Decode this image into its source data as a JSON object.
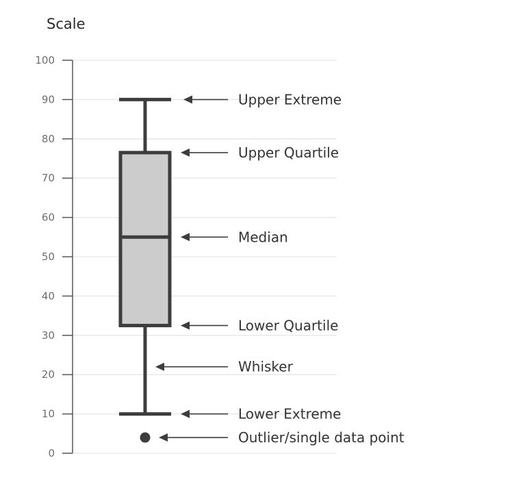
{
  "chart_data": {
    "type": "box",
    "ylabel": "Scale",
    "ylim": [
      0,
      100
    ],
    "yticks": [
      0,
      10,
      20,
      30,
      40,
      50,
      60,
      70,
      80,
      90,
      100
    ],
    "grid": true,
    "box": {
      "upper_extreme": 90,
      "upper_quartile": 76.5,
      "median": 55,
      "lower_quartile": 32.5,
      "lower_extreme": 10,
      "outlier": 4
    },
    "annotations": [
      {
        "key": "upper_extreme",
        "label": "Upper Extreme",
        "value": 90
      },
      {
        "key": "upper_quartile",
        "label": "Upper Quartile",
        "value": 76.5
      },
      {
        "key": "median",
        "label": "Median",
        "value": 55
      },
      {
        "key": "lower_quartile",
        "label": "Lower Quartile",
        "value": 32.5
      },
      {
        "key": "whisker",
        "label": "Whisker",
        "value": 22
      },
      {
        "key": "lower_extreme",
        "label": "Lower Extreme",
        "value": 10
      },
      {
        "key": "outlier",
        "label": "Outlier/single data point",
        "value": 4
      }
    ],
    "colors": {
      "box_fill": "#cccccc",
      "stroke": "#3d3d3d",
      "grid": "#e6e6e6",
      "axis": "#555555"
    }
  }
}
